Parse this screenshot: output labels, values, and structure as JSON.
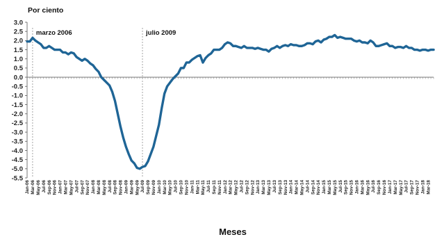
{
  "chart_data": {
    "type": "line",
    "unit_label": "Por ciento",
    "xlabel": "Meses",
    "ylabel": "",
    "ylim": [
      -5.5,
      3.0
    ],
    "yticks": [
      3.0,
      2.5,
      2.0,
      1.5,
      1.0,
      0.5,
      0.0,
      -0.5,
      -1.0,
      -1.5,
      -2.0,
      -2.5,
      -3.0,
      -3.5,
      -4.0,
      -4.5,
      -5.0,
      -5.5
    ],
    "ytick_labels": [
      "3.0",
      "2.5",
      "2.0",
      "1.5",
      "1.0",
      "0.5",
      "0.0",
      "-0.5",
      "-1.0",
      "-1.5",
      "-2.0",
      "-2.5",
      "-3.0",
      "-3.5",
      "-4.0",
      "-4.5",
      "-5.0",
      "-5.5"
    ],
    "x_start": "Jan-06",
    "x_tick_labels": [
      "Jan-06",
      "Mar-06",
      "May-06",
      "Jul-06",
      "Sep-06",
      "Nov-06",
      "Jan-07",
      "Mar-07",
      "May-07",
      "Jul-07",
      "Sep-07",
      "Nov-07",
      "Jan-08",
      "Mar-08",
      "May-08",
      "Jul-08",
      "Sep-08",
      "Nov-08",
      "Jan-09",
      "Mar-09",
      "May-09",
      "Jul-09",
      "Sep-09",
      "Nov-09",
      "Jan-10",
      "Mar-10",
      "May-10",
      "Jul-10",
      "Sep-10",
      "Nov-10",
      "Jan-11",
      "Mar-11",
      "May-11",
      "Jul-11",
      "Sep-11",
      "Nov-11",
      "Jan-12",
      "Mar-12",
      "May-12",
      "Jul-12",
      "Sep-12",
      "Nov-12",
      "Jan-13",
      "Mar-13",
      "May-13",
      "Jul-13",
      "Sep-13",
      "Nov-13",
      "Jan-14",
      "Mar-14",
      "May-14",
      "Jul-14",
      "Sep-14",
      "Nov-14",
      "Jan-15",
      "Mar-15",
      "May-15",
      "Jul-15",
      "Sep-15",
      "Nov-15",
      "Jan-16",
      "Mar-16",
      "May-16",
      "Jul-16",
      "Sep-16",
      "Nov-16",
      "Jan-17",
      "Mar-17",
      "May-17",
      "Jul-17",
      "Sep-17",
      "Nov-17",
      "Jan-18",
      "Mar-18"
    ],
    "annotations": [
      {
        "label": "marzo 2006",
        "month": "Mar-06"
      },
      {
        "label": "julio 2009",
        "month": "Jul-09"
      }
    ],
    "series": [
      {
        "color": "#1f6596",
        "values": [
          1.95,
          1.95,
          2.15,
          2.0,
          1.9,
          1.8,
          1.6,
          1.6,
          1.7,
          1.6,
          1.5,
          1.5,
          1.5,
          1.35,
          1.35,
          1.25,
          1.35,
          1.3,
          1.1,
          1.0,
          0.9,
          1.0,
          0.9,
          0.75,
          0.65,
          0.45,
          0.3,
          0.0,
          -0.15,
          -0.3,
          -0.45,
          -0.8,
          -1.3,
          -2.0,
          -2.7,
          -3.3,
          -3.8,
          -4.2,
          -4.55,
          -4.7,
          -4.95,
          -5.0,
          -4.9,
          -4.85,
          -4.6,
          -4.2,
          -3.8,
          -3.2,
          -2.6,
          -1.7,
          -0.9,
          -0.5,
          -0.3,
          -0.1,
          0.05,
          0.2,
          0.5,
          0.5,
          0.8,
          0.8,
          0.95,
          1.05,
          1.15,
          1.2,
          0.8,
          1.05,
          1.2,
          1.3,
          1.5,
          1.5,
          1.5,
          1.6,
          1.8,
          1.9,
          1.85,
          1.7,
          1.7,
          1.65,
          1.6,
          1.7,
          1.6,
          1.6,
          1.6,
          1.55,
          1.6,
          1.55,
          1.5,
          1.5,
          1.4,
          1.55,
          1.6,
          1.7,
          1.6,
          1.7,
          1.75,
          1.7,
          1.8,
          1.75,
          1.75,
          1.7,
          1.7,
          1.75,
          1.85,
          1.85,
          1.8,
          1.95,
          2.0,
          1.9,
          2.05,
          2.1,
          2.2,
          2.2,
          2.3,
          2.15,
          2.2,
          2.15,
          2.1,
          2.1,
          2.1,
          2.0,
          1.95,
          2.0,
          1.9,
          1.9,
          1.85,
          2.0,
          1.9,
          1.7,
          1.7,
          1.75,
          1.8,
          1.85,
          1.7,
          1.7,
          1.6,
          1.65,
          1.65,
          1.6,
          1.7,
          1.6,
          1.6,
          1.5,
          1.5,
          1.45,
          1.5,
          1.5,
          1.45,
          1.5,
          1.5
        ]
      }
    ],
    "grid": false,
    "legend": "none"
  }
}
